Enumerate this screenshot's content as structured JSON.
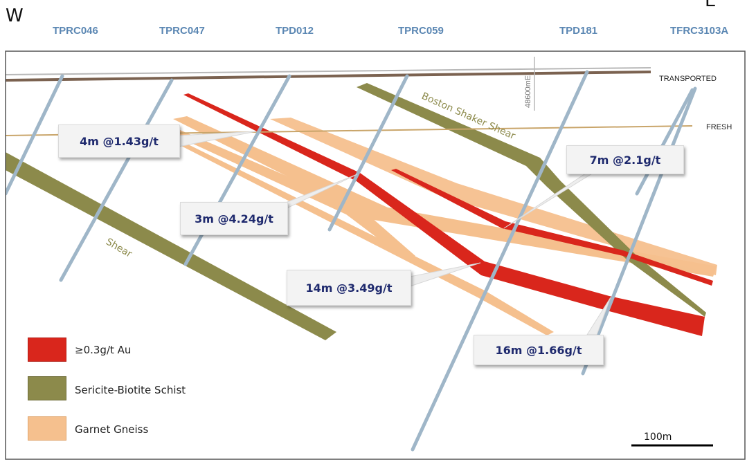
{
  "compass": {
    "west": "W",
    "east": "E"
  },
  "drillholes": [
    "TPRC046",
    "TPRC047",
    "TPD012",
    "TPRC059",
    "TPD181",
    "TFRC3103A"
  ],
  "surfaces": {
    "transported": "TRANSPORTED",
    "fresh": "FRESH"
  },
  "grid_label": "48600mE",
  "structures": {
    "boston_shaker": "Boston Shaker Shear",
    "shear": "Shear"
  },
  "intercepts": [
    "4m @1.43g/t",
    "3m @4.24g/t",
    "7m @2.1g/t",
    "14m @3.49g/t",
    "16m @1.66g/t"
  ],
  "legend": [
    {
      "label": "≥0.3g/t Au",
      "color": "#d9261c"
    },
    {
      "label": "Sericite-Biotite Schist",
      "color": "#8c8a4b"
    },
    {
      "label": "Garnet Gneiss",
      "color": "#f5c08e"
    }
  ],
  "scale_bar": "100m",
  "colors": {
    "drillhole": "#9fb6c8",
    "gold": "#d9261c",
    "schist": "#8c8a4b",
    "gneiss": "#f5c08e",
    "hole_label": "#5b87b3",
    "callout_text": "#1f2a6e"
  }
}
